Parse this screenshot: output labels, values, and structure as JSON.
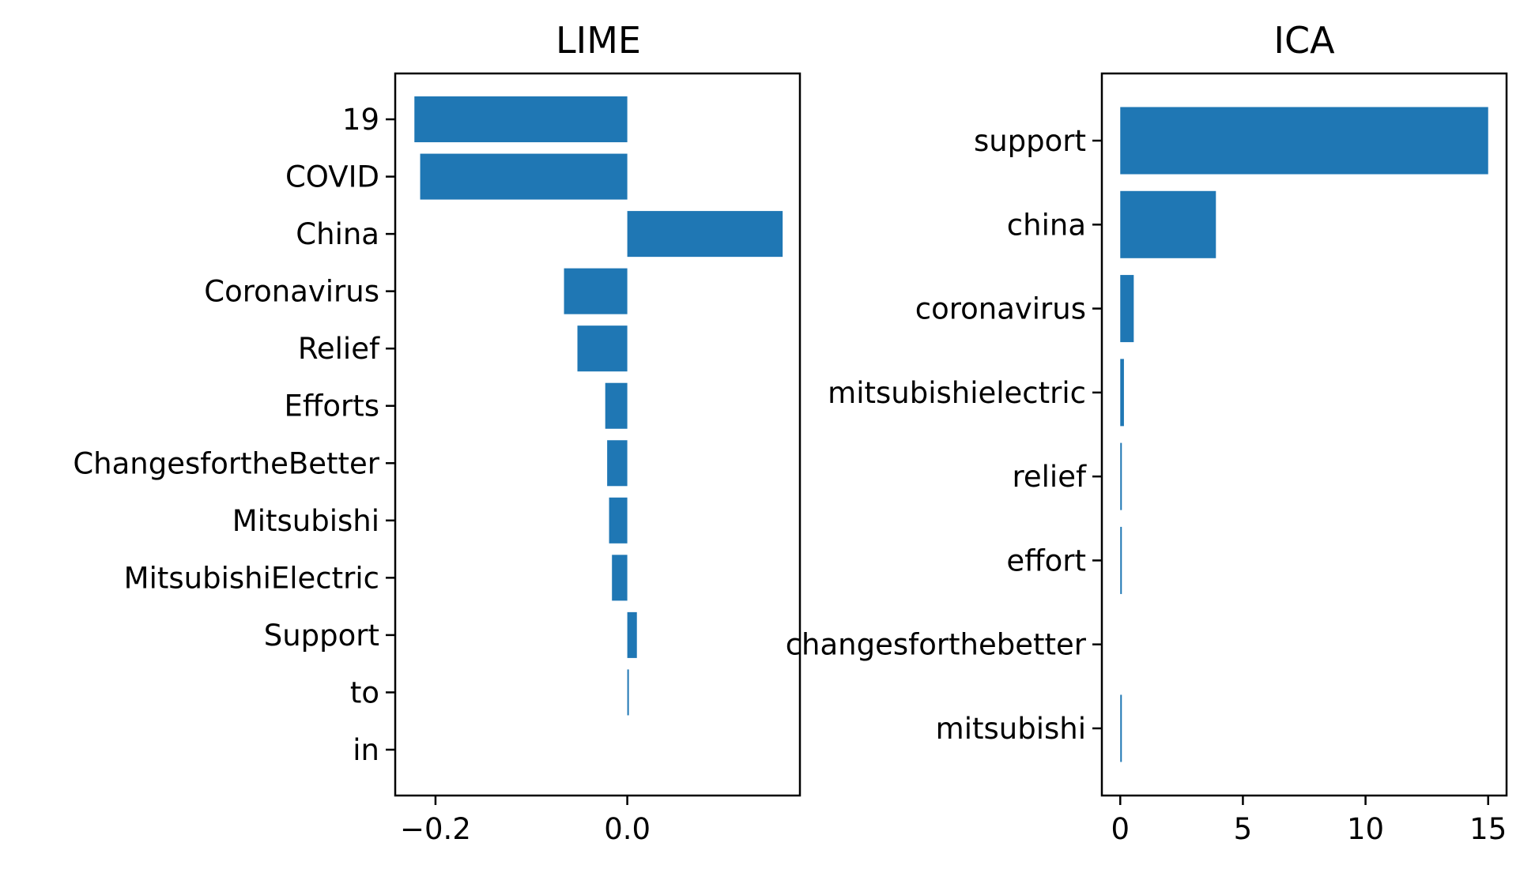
{
  "chart_data": [
    {
      "type": "bar",
      "orientation": "horizontal",
      "title": "LIME",
      "xlabel": "",
      "ylabel": "",
      "categories": [
        "19",
        "COVID",
        "China",
        "Coronavirus",
        "Relief",
        "Efforts",
        "ChangesfortheBetter",
        "Mitsubishi",
        "MitsubishiElectric",
        "Support",
        "to",
        "in"
      ],
      "values": [
        -0.222,
        -0.216,
        0.162,
        -0.066,
        -0.052,
        -0.023,
        -0.021,
        -0.019,
        -0.016,
        0.01,
        0.001,
        0.0
      ],
      "xticks": [
        -0.2,
        0.0
      ],
      "xtick_labels": [
        "−0.2",
        "0.0"
      ],
      "xlim": [
        -0.242,
        0.18
      ],
      "color": "#1f77b4",
      "grid": false
    },
    {
      "type": "bar",
      "orientation": "horizontal",
      "title": "ICA",
      "xlabel": "",
      "ylabel": "",
      "categories": [
        "support",
        "china",
        "coronavirus",
        "mitsubishielectric",
        "relief",
        "effort",
        "changesforthebetter",
        "mitsubishi"
      ],
      "values": [
        15.0,
        3.9,
        0.55,
        0.15,
        0.06,
        0.02,
        0.0,
        0.02
      ],
      "xticks": [
        0,
        5,
        10,
        15
      ],
      "xtick_labels": [
        "0",
        "5",
        "10",
        "15"
      ],
      "xlim": [
        -0.75,
        15.75
      ],
      "color": "#1f77b4",
      "grid": false
    }
  ]
}
